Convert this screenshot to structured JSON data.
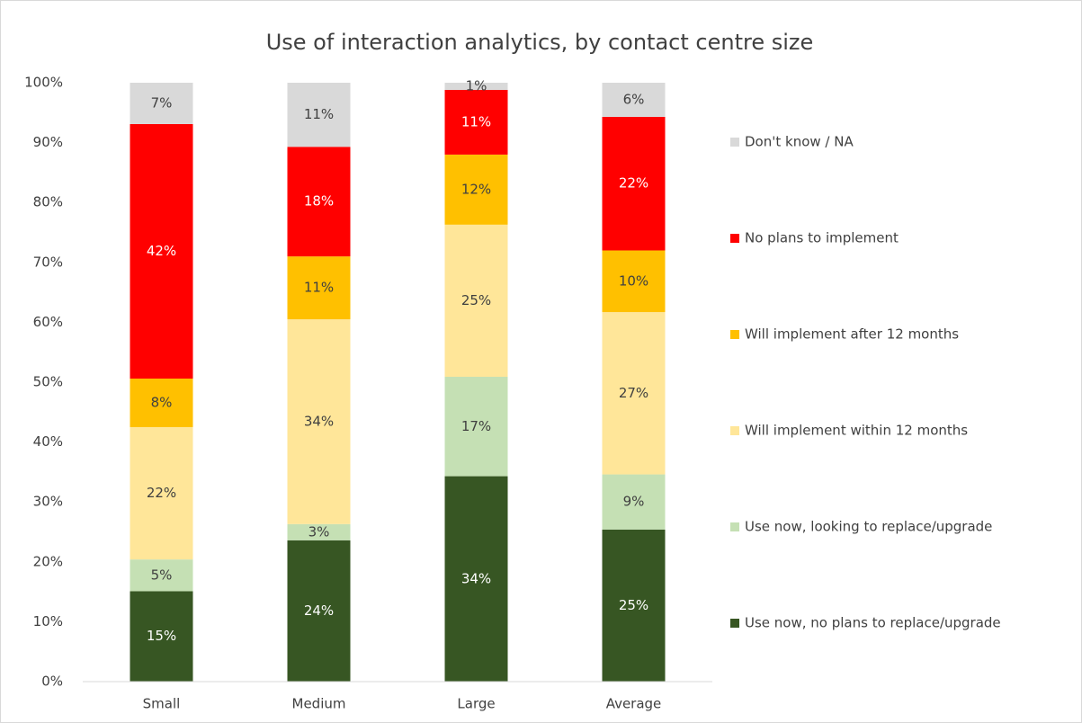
{
  "chart_data": {
    "type": "stacked_bar",
    "title": "Use of interaction analytics, by contact centre size",
    "categories": [
      "Small",
      "Medium",
      "Large",
      "Average"
    ],
    "series": [
      {
        "name": "Use now, no plans to replace/upgrade",
        "color": "#375623",
        "values": [
          15.1,
          23.6,
          34.3,
          25.4
        ],
        "value_labels": [
          "15%",
          "24%",
          "34%",
          "25%"
        ]
      },
      {
        "name": "Use now, looking to replace/upgrade",
        "color": "#c5e0b4",
        "values": [
          5.3,
          2.7,
          16.6,
          9.2
        ],
        "value_labels": [
          "5%",
          "3%",
          "17%",
          "9%"
        ]
      },
      {
        "name": "Will implement within 12 months",
        "color": "#ffe699",
        "values": [
          22.1,
          34.2,
          25.4,
          27.1
        ],
        "value_labels": [
          "22%",
          "34%",
          "25%",
          "27%"
        ]
      },
      {
        "name": "Will implement after 12 months",
        "color": "#ffc000",
        "values": [
          8.1,
          10.5,
          11.7,
          10.3
        ],
        "value_labels": [
          "8%",
          "11%",
          "12%",
          "10%"
        ]
      },
      {
        "name": "No plans to implement",
        "color": "#ff0000",
        "values": [
          42.5,
          18.3,
          10.8,
          22.3
        ],
        "value_labels": [
          "42%",
          "18%",
          "11%",
          "22%"
        ]
      },
      {
        "name": "Don't know / NA",
        "color": "#d9d9d9",
        "values": [
          6.9,
          10.7,
          1.2,
          5.7
        ],
        "value_labels": [
          "7%",
          "11%",
          "1%",
          "6%"
        ]
      }
    ],
    "ylim": [
      0,
      100
    ],
    "yticks": [
      {
        "value": 0,
        "label": "0%"
      },
      {
        "value": 10,
        "label": "10%"
      },
      {
        "value": 20,
        "label": "20%"
      },
      {
        "value": 30,
        "label": "30%"
      },
      {
        "value": 40,
        "label": "40%"
      },
      {
        "value": 50,
        "label": "50%"
      },
      {
        "value": 60,
        "label": "60%"
      },
      {
        "value": 70,
        "label": "70%"
      },
      {
        "value": 80,
        "label": "80%"
      },
      {
        "value": 90,
        "label": "90%"
      },
      {
        "value": 100,
        "label": "100%"
      }
    ],
    "grid": false,
    "legend": "right"
  }
}
